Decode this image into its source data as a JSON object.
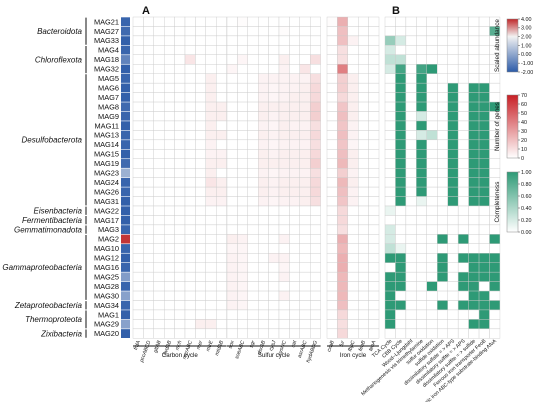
{
  "chart_data": {
    "type": "heatmap",
    "panel_labels": [
      "A",
      "B"
    ],
    "taxa": [
      {
        "name": "Bacteroidota",
        "mags": [
          "MAG21",
          "MAG27",
          "MAG33"
        ]
      },
      {
        "name": "Chloroflexota",
        "mags": [
          "MAG4",
          "MAG18",
          "MAG32"
        ]
      },
      {
        "name": "Desulfobacterota",
        "mags": [
          "MAG5",
          "MAG6",
          "MAG7",
          "MAG8",
          "MAG9",
          "MAG11",
          "MAG13",
          "MAG14",
          "MAG15",
          "MAG19",
          "MAG23",
          "MAG24",
          "MAG26",
          "MAG31"
        ]
      },
      {
        "name": "Eisenbacteria",
        "mags": [
          "MAG22"
        ]
      },
      {
        "name": "Fermentibacteria",
        "mags": [
          "MAG17"
        ]
      },
      {
        "name": "Gemmatimonadota",
        "mags": [
          "MAG3"
        ]
      },
      {
        "name": "Gammaproteobacteria",
        "mags": [
          "MAG2",
          "MAG10",
          "MAG12",
          "MAG16",
          "MAG25",
          "MAG28",
          "MAG30"
        ]
      },
      {
        "name": "Zetaproteobacteria",
        "mags": [
          "MAG34"
        ]
      },
      {
        "name": "Thermoproteota",
        "mags": [
          "MAG1",
          "MAG29"
        ]
      },
      {
        "name": "Zixibacteria",
        "mags": [
          "MAG20"
        ]
      }
    ],
    "abundance": [
      -1.8,
      -1.7,
      -1.9,
      -1.8,
      -1.2,
      -1.9,
      -1.8,
      -1.9,
      -1.9,
      -1.7,
      -1.8,
      -1.9,
      -1.8,
      -1.8,
      -1.9,
      -1.7,
      -0.3,
      -1.8,
      -1.8,
      -1.9,
      -1.9,
      -1.9,
      -1.8,
      3.8,
      -1.8,
      -1.9,
      -1.8,
      -0.7,
      -1.8,
      -0.6,
      -1.8,
      -1.9,
      -0.6,
      -1.9
    ],
    "gene_groups": [
      {
        "name": "Carbon cycle",
        "genes": [
          "frdA",
          "pccABCD",
          "gltAB",
          "fwdAB",
          "mch",
          "mcrABC",
          "mer",
          "mtrE",
          "mtdAB"
        ]
      },
      {
        "name": "Sulfur cycle",
        "genes": [
          "sox",
          "soeABC",
          "sqr",
          "dsrAB",
          "cysJ",
          "cysNC",
          "sat",
          "asrABC",
          "hydABDG"
        ]
      },
      {
        "name": "Iron cycle",
        "genes": [
          "cxaB",
          "fur",
          "fbpC",
          "feoB",
          "feoA"
        ]
      }
    ],
    "gene_counts": [
      [
        0,
        0,
        0,
        0,
        0,
        0,
        0,
        0,
        0,
        0,
        1,
        0,
        0,
        0,
        0,
        0,
        0,
        0,
        1,
        25,
        0,
        0,
        0
      ],
      [
        0,
        0,
        0,
        0,
        0,
        0,
        0,
        0,
        0,
        0,
        0,
        0,
        0,
        0,
        1,
        0,
        0,
        0,
        0,
        20,
        0,
        0,
        0
      ],
      [
        0,
        0,
        0,
        0,
        0,
        0,
        0,
        0,
        0,
        0,
        0,
        0,
        0,
        0,
        0,
        0,
        0,
        0,
        0,
        20,
        4,
        0,
        0
      ],
      [
        0,
        0,
        0,
        0,
        0,
        0,
        0,
        0,
        0,
        0,
        0,
        0,
        0,
        0,
        0,
        0,
        0,
        0,
        0,
        10,
        0,
        0,
        0
      ],
      [
        0,
        0,
        0,
        0,
        0,
        8,
        0,
        0,
        0,
        0,
        3,
        0,
        0,
        0,
        5,
        0,
        0,
        10,
        0,
        10,
        0,
        0,
        0
      ],
      [
        0,
        0,
        0,
        0,
        0,
        0,
        0,
        0,
        0,
        3,
        0,
        0,
        0,
        0,
        4,
        0,
        8,
        0,
        0,
        40,
        0,
        0,
        0
      ],
      [
        0,
        0,
        0,
        0,
        0,
        0,
        0,
        5,
        0,
        0,
        0,
        0,
        4,
        4,
        4,
        4,
        4,
        10,
        0,
        15,
        5,
        0,
        0
      ],
      [
        0,
        0,
        0,
        0,
        0,
        0,
        0,
        5,
        0,
        0,
        0,
        0,
        4,
        3,
        4,
        4,
        5,
        12,
        0,
        15,
        5,
        0,
        0
      ],
      [
        0,
        0,
        0,
        0,
        0,
        0,
        0,
        5,
        0,
        0,
        0,
        0,
        4,
        3,
        4,
        5,
        5,
        12,
        0,
        12,
        5,
        0,
        0
      ],
      [
        0,
        0,
        0,
        0,
        0,
        0,
        0,
        5,
        5,
        0,
        0,
        0,
        5,
        5,
        5,
        5,
        5,
        15,
        0,
        18,
        5,
        0,
        0
      ],
      [
        0,
        0,
        0,
        0,
        0,
        0,
        0,
        5,
        5,
        0,
        0,
        0,
        5,
        4,
        5,
        5,
        5,
        15,
        0,
        20,
        5,
        0,
        0
      ],
      [
        0,
        0,
        0,
        0,
        0,
        0,
        0,
        5,
        0,
        0,
        0,
        0,
        4,
        3,
        5,
        4,
        4,
        10,
        0,
        18,
        4,
        0,
        0
      ],
      [
        0,
        0,
        0,
        0,
        0,
        0,
        0,
        5,
        5,
        0,
        0,
        0,
        5,
        4,
        5,
        5,
        5,
        12,
        0,
        20,
        4,
        0,
        0
      ],
      [
        0,
        0,
        0,
        0,
        0,
        0,
        0,
        4,
        0,
        0,
        0,
        0,
        4,
        3,
        4,
        4,
        4,
        10,
        0,
        18,
        3,
        0,
        0
      ],
      [
        0,
        0,
        0,
        0,
        0,
        0,
        0,
        4,
        4,
        0,
        0,
        0,
        5,
        4,
        5,
        5,
        5,
        12,
        0,
        20,
        5,
        0,
        0
      ],
      [
        0,
        0,
        0,
        0,
        0,
        0,
        0,
        5,
        5,
        0,
        0,
        0,
        5,
        5,
        5,
        5,
        5,
        15,
        0,
        22,
        5,
        0,
        0
      ],
      [
        0,
        0,
        0,
        0,
        0,
        0,
        0,
        5,
        0,
        0,
        0,
        0,
        4,
        3,
        4,
        4,
        4,
        10,
        0,
        15,
        4,
        0,
        0
      ],
      [
        0,
        0,
        0,
        0,
        0,
        0,
        0,
        8,
        5,
        0,
        0,
        0,
        5,
        4,
        5,
        5,
        5,
        12,
        0,
        22,
        5,
        0,
        0
      ],
      [
        0,
        0,
        0,
        0,
        0,
        0,
        0,
        5,
        5,
        0,
        0,
        0,
        5,
        4,
        5,
        5,
        5,
        12,
        0,
        20,
        4,
        0,
        0
      ],
      [
        0,
        0,
        0,
        0,
        0,
        0,
        0,
        4,
        4,
        0,
        0,
        0,
        4,
        3,
        4,
        4,
        5,
        10,
        0,
        18,
        4,
        0,
        0
      ],
      [
        0,
        0,
        0,
        0,
        0,
        0,
        0,
        0,
        0,
        0,
        0,
        0,
        0,
        0,
        0,
        0,
        0,
        0,
        0,
        12,
        0,
        0,
        0
      ],
      [
        0,
        0,
        0,
        0,
        0,
        0,
        0,
        0,
        0,
        0,
        0,
        0,
        0,
        0,
        0,
        0,
        0,
        0,
        0,
        12,
        0,
        0,
        0
      ],
      [
        0,
        0,
        0,
        0,
        0,
        0,
        0,
        0,
        0,
        0,
        0,
        0,
        0,
        0,
        0,
        0,
        0,
        0,
        0,
        10,
        0,
        0,
        0
      ],
      [
        0,
        0,
        0,
        0,
        0,
        0,
        0,
        0,
        0,
        5,
        4,
        0,
        0,
        0,
        4,
        0,
        0,
        0,
        0,
        25,
        0,
        0,
        0
      ],
      [
        0,
        0,
        0,
        0,
        0,
        0,
        0,
        0,
        0,
        3,
        3,
        0,
        0,
        0,
        0,
        0,
        0,
        0,
        0,
        22,
        0,
        0,
        0
      ],
      [
        0,
        0,
        0,
        0,
        0,
        0,
        0,
        0,
        0,
        4,
        3,
        0,
        0,
        4,
        4,
        0,
        0,
        0,
        0,
        25,
        0,
        0,
        0
      ],
      [
        0,
        0,
        0,
        0,
        0,
        0,
        0,
        0,
        0,
        4,
        3,
        0,
        0,
        0,
        3,
        0,
        0,
        0,
        0,
        25,
        0,
        0,
        0
      ],
      [
        0,
        0,
        0,
        0,
        0,
        0,
        0,
        0,
        0,
        4,
        3,
        0,
        0,
        0,
        4,
        0,
        0,
        0,
        0,
        22,
        0,
        0,
        0
      ],
      [
        0,
        0,
        0,
        0,
        0,
        0,
        0,
        0,
        0,
        4,
        3,
        0,
        0,
        0,
        0,
        0,
        0,
        0,
        0,
        22,
        0,
        0,
        0
      ],
      [
        0,
        0,
        0,
        0,
        0,
        0,
        0,
        0,
        0,
        4,
        3,
        0,
        0,
        0,
        4,
        0,
        0,
        0,
        0,
        22,
        0,
        0,
        0
      ],
      [
        0,
        0,
        0,
        0,
        0,
        0,
        0,
        0,
        0,
        4,
        3,
        0,
        0,
        0,
        0,
        0,
        0,
        0,
        0,
        20,
        0,
        0,
        0
      ],
      [
        0,
        0,
        0,
        0,
        0,
        0,
        0,
        0,
        0,
        0,
        0,
        0,
        0,
        0,
        0,
        0,
        0,
        0,
        0,
        12,
        0,
        0,
        0
      ],
      [
        0,
        0,
        0,
        0,
        0,
        0,
        5,
        5,
        0,
        0,
        0,
        0,
        0,
        0,
        0,
        0,
        0,
        0,
        0,
        10,
        0,
        0,
        0
      ],
      [
        0,
        0,
        0,
        0,
        0,
        0,
        0,
        0,
        0,
        0,
        0,
        0,
        0,
        0,
        0,
        0,
        0,
        0,
        0,
        12,
        0,
        0,
        0
      ]
    ],
    "pathways": [
      "TCA Cycle",
      "CBB Cycle",
      "Wood–Ljungdahl",
      "Methanogenesis via trimethylamine",
      "sulfur oxidation",
      "sulfide oxidation",
      "dissimilatory sulfate = > APS",
      "dissimilatory sulfite = > APS",
      "dissimilatory sulfite = > sulfide",
      "Ferrous iron transporter FeoB",
      "Ferric iron ABC-type substrate-binding AfuA"
    ],
    "completeness": [
      [
        0,
        0,
        0,
        0,
        0,
        0,
        0,
        0,
        0,
        0,
        0
      ],
      [
        0,
        0,
        0,
        0,
        0,
        0,
        0,
        0,
        0,
        0,
        0.8
      ],
      [
        0.5,
        0.2,
        0,
        0,
        0,
        0,
        0,
        0,
        0,
        0,
        0
      ],
      [
        0.2,
        0,
        0,
        0,
        0,
        0,
        0,
        0,
        0,
        0,
        0
      ],
      [
        0.3,
        0.3,
        0,
        0,
        0,
        0,
        0,
        0,
        0,
        0,
        0
      ],
      [
        0.2,
        0.9,
        0,
        0.9,
        1,
        0,
        0,
        0,
        0,
        0,
        0
      ],
      [
        0,
        1,
        0,
        1,
        0,
        0,
        0,
        0,
        0,
        0,
        0
      ],
      [
        0,
        1,
        0,
        1,
        0,
        0,
        1,
        0,
        1,
        1,
        0
      ],
      [
        0,
        1,
        0,
        1,
        0,
        0,
        1,
        0,
        1,
        1,
        0
      ],
      [
        0,
        1,
        0,
        1,
        0,
        0,
        1,
        0,
        1,
        1,
        1
      ],
      [
        0,
        1,
        0,
        0.2,
        0,
        0,
        1,
        0,
        1,
        1,
        0
      ],
      [
        0,
        1,
        0,
        1,
        0,
        0,
        1,
        0,
        1,
        1,
        0
      ],
      [
        0,
        1,
        0,
        0.2,
        0.3,
        0,
        1,
        0,
        1,
        1,
        0
      ],
      [
        0,
        1,
        0,
        1,
        0,
        0,
        1,
        0,
        1,
        1,
        0
      ],
      [
        0,
        1,
        0,
        1,
        0,
        0,
        1,
        0,
        1,
        1,
        0
      ],
      [
        0,
        1,
        0,
        1,
        0,
        0,
        1,
        0,
        1,
        1,
        0
      ],
      [
        0,
        1,
        0,
        1,
        0,
        0,
        1,
        0,
        1,
        1,
        0
      ],
      [
        0,
        1,
        0,
        1,
        0,
        0,
        1,
        0,
        1,
        1,
        0
      ],
      [
        0,
        1,
        0,
        1,
        0,
        0,
        1,
        0,
        1,
        1,
        0
      ],
      [
        0,
        1,
        0,
        0.1,
        0,
        0,
        1,
        0,
        1,
        1,
        0
      ],
      [
        0.1,
        0,
        0,
        0,
        0,
        0,
        0,
        0,
        0,
        0,
        0
      ],
      [
        0,
        0,
        0,
        0,
        0,
        0,
        0,
        0,
        0,
        0,
        0
      ],
      [
        0.2,
        0,
        0,
        0,
        0,
        0,
        0,
        0,
        0,
        0,
        0
      ],
      [
        0.2,
        0,
        0,
        0,
        0,
        1,
        0,
        1,
        0,
        0,
        1
      ],
      [
        0.3,
        0.1,
        0,
        0,
        0,
        0,
        0,
        0,
        0,
        0,
        0
      ],
      [
        1,
        1,
        0,
        0,
        0,
        1,
        0,
        1,
        1,
        1,
        1
      ],
      [
        0,
        1,
        0,
        0,
        0,
        1,
        0,
        0,
        1,
        1,
        1
      ],
      [
        1,
        1,
        0,
        0,
        0,
        1,
        0,
        1,
        1,
        1,
        1
      ],
      [
        1,
        1,
        0,
        0,
        1,
        0,
        0,
        1,
        1,
        0,
        1
      ],
      [
        1,
        0,
        0,
        0,
        0,
        0,
        0,
        0,
        1,
        1,
        0
      ],
      [
        1,
        1,
        0,
        0,
        0,
        1,
        0,
        1,
        1,
        1,
        1
      ],
      [
        1,
        0,
        0,
        0,
        0,
        0,
        0,
        0,
        0,
        1,
        0
      ],
      [
        1,
        0,
        0,
        0,
        0,
        0,
        0,
        0,
        1,
        1,
        0
      ],
      [
        0,
        0,
        0,
        0,
        0,
        0,
        0,
        0,
        0,
        0,
        0
      ]
    ],
    "legends": [
      {
        "title": "Scaled abundance",
        "ticks": [
          "4.00",
          "3.00",
          "2.00",
          "1.00",
          "0.00",
          "-1.00",
          "-2.00"
        ],
        "colors": [
          "#c0282a",
          "#f2f2f2",
          "#2c5ba8"
        ],
        "min": -2,
        "max": 4
      },
      {
        "title": "Number of genes",
        "ticks": [
          "70",
          "60",
          "50",
          "40",
          "30",
          "20",
          "10",
          "0"
        ],
        "colors": [
          "#ffffff",
          "#c81f25"
        ],
        "min": 0,
        "max": 70
      },
      {
        "title": "Completeness",
        "ticks": [
          "1.00",
          "0.80",
          "0.60",
          "0.40",
          "0.20",
          "0.00"
        ],
        "colors": [
          "#ffffff",
          "#2e9a76"
        ],
        "min": 0,
        "max": 1
      }
    ]
  }
}
